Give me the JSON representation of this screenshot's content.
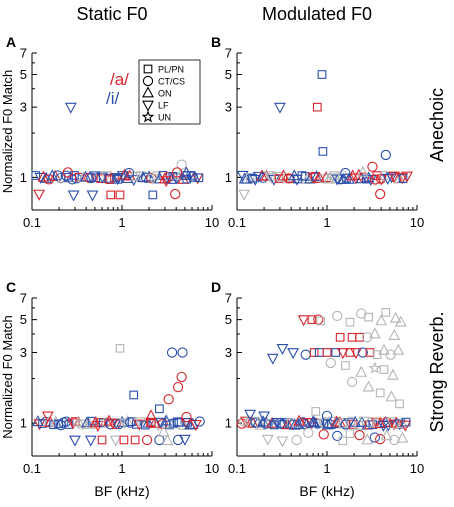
{
  "column_titles": [
    "Static F0",
    "Modulated F0"
  ],
  "row_titles": [
    "Anechoic",
    "Strong Reverb."
  ],
  "legend": {
    "vowels": [
      {
        "label": "/a/",
        "color": "#d9242b"
      },
      {
        "label": "/i/",
        "color": "#2a4fad"
      }
    ],
    "classes": [
      {
        "label": "PL/PN",
        "marker": "square"
      },
      {
        "label": "CT/CS",
        "marker": "circle"
      },
      {
        "label": "ON",
        "marker": "triangle-up"
      },
      {
        "label": "LF",
        "marker": "triangle-down"
      },
      {
        "label": "UN",
        "marker": "star"
      }
    ]
  },
  "colors": {
    "a": "#d9242b",
    "i": "#2a4fad",
    "unmatched": "#b5b5b5",
    "axis": "#000000"
  },
  "chart_data": [
    {
      "type": "scatter",
      "panel": "A",
      "xlabel": "",
      "ylabel": "Normalized F0 Match",
      "x_scale": "log",
      "xlim": [
        0.1,
        10
      ],
      "ylim": [
        0.6,
        7
      ],
      "xticks": [
        0.1,
        1,
        10
      ],
      "yticks": [
        1,
        3,
        5,
        7
      ],
      "points": [
        {
          "x": 0.27,
          "y": 3.0,
          "m": "triangle-down",
          "c": "i"
        },
        {
          "x": 0.12,
          "y": 0.77,
          "m": "triangle-down",
          "c": "a"
        },
        {
          "x": 0.29,
          "y": 0.76,
          "m": "triangle-down",
          "c": "i"
        },
        {
          "x": 0.47,
          "y": 0.76,
          "m": "triangle-down",
          "c": "i"
        },
        {
          "x": 0.75,
          "y": 0.76,
          "m": "square",
          "c": "a"
        },
        {
          "x": 0.95,
          "y": 0.76,
          "m": "square",
          "c": "a"
        },
        {
          "x": 2.2,
          "y": 0.76,
          "m": "square",
          "c": "i"
        },
        {
          "x": 3.9,
          "y": 0.77,
          "m": "circle",
          "c": "a"
        },
        {
          "x": 0.25,
          "y": 1.08,
          "m": "circle",
          "c": "a"
        },
        {
          "x": 1.2,
          "y": 1.07,
          "m": "circle",
          "c": "i"
        },
        {
          "x": 4.6,
          "y": 1.22,
          "m": "circle",
          "c": "u"
        },
        {
          "x": 4.1,
          "y": 1.08,
          "m": "circle",
          "c": "a"
        },
        {
          "x": 5.2,
          "y": 1.07,
          "m": "triangle-up",
          "c": "i"
        },
        {
          "x": 0.9,
          "y": 0.97,
          "m": "square",
          "c": "i"
        },
        {
          "x": 3.1,
          "y": 0.95,
          "m": "triangle-down",
          "c": "a"
        },
        {
          "x": 6.4,
          "y": 1.0,
          "m": "triangle-up",
          "c": "i"
        }
      ],
      "band": {
        "y": 1.0,
        "x_range": [
          0.11,
          7.5
        ],
        "density": 58
      }
    },
    {
      "type": "scatter",
      "panel": "B",
      "xlabel": "",
      "ylabel": "",
      "x_scale": "log",
      "xlim": [
        0.1,
        10
      ],
      "ylim": [
        0.6,
        7
      ],
      "xticks": [
        0.1,
        1,
        10
      ],
      "yticks": [
        1,
        3,
        5,
        7
      ],
      "points": [
        {
          "x": 0.88,
          "y": 5.0,
          "m": "square",
          "c": "i"
        },
        {
          "x": 0.78,
          "y": 3.0,
          "m": "square",
          "c": "a"
        },
        {
          "x": 0.3,
          "y": 3.0,
          "m": "triangle-down",
          "c": "i"
        },
        {
          "x": 0.9,
          "y": 1.5,
          "m": "square",
          "c": "i"
        },
        {
          "x": 0.12,
          "y": 0.77,
          "m": "triangle-down",
          "c": "u"
        },
        {
          "x": 3.9,
          "y": 0.77,
          "m": "circle",
          "c": "a"
        },
        {
          "x": 4.5,
          "y": 1.42,
          "m": "circle",
          "c": "i"
        },
        {
          "x": 3.2,
          "y": 1.18,
          "m": "circle",
          "c": "a"
        },
        {
          "x": 2.5,
          "y": 1.08,
          "m": "triangle-up",
          "c": "u"
        },
        {
          "x": 1.6,
          "y": 1.07,
          "m": "circle",
          "c": "i"
        }
      ],
      "band": {
        "y": 1.0,
        "x_range": [
          0.11,
          8.0
        ],
        "density": 62
      }
    },
    {
      "type": "scatter",
      "panel": "C",
      "xlabel": "BF (kHz)",
      "ylabel": "Normalized F0 Match",
      "x_scale": "log",
      "xlim": [
        0.1,
        10
      ],
      "ylim": [
        0.6,
        7
      ],
      "xticks": [
        0.1,
        1,
        10
      ],
      "yticks": [
        1,
        3,
        5,
        7
      ],
      "points": [
        {
          "x": 0.95,
          "y": 3.2,
          "m": "square",
          "c": "u"
        },
        {
          "x": 3.6,
          "y": 3.0,
          "m": "circle",
          "c": "i"
        },
        {
          "x": 4.7,
          "y": 3.0,
          "m": "circle",
          "c": "i"
        },
        {
          "x": 4.2,
          "y": 1.75,
          "m": "circle",
          "c": "a"
        },
        {
          "x": 4.6,
          "y": 2.05,
          "m": "circle",
          "c": "a"
        },
        {
          "x": 1.35,
          "y": 1.55,
          "m": "square",
          "c": "i"
        },
        {
          "x": 3.3,
          "y": 1.45,
          "m": "circle",
          "c": "a"
        },
        {
          "x": 2.6,
          "y": 1.25,
          "m": "square",
          "c": "i"
        },
        {
          "x": 0.15,
          "y": 1.12,
          "m": "triangle-down",
          "c": "a"
        },
        {
          "x": 0.3,
          "y": 0.77,
          "m": "triangle-down",
          "c": "i"
        },
        {
          "x": 0.45,
          "y": 0.77,
          "m": "triangle-down",
          "c": "i"
        },
        {
          "x": 0.6,
          "y": 0.77,
          "m": "square",
          "c": "a"
        },
        {
          "x": 0.85,
          "y": 0.77,
          "m": "triangle-down",
          "c": "u"
        },
        {
          "x": 1.05,
          "y": 0.77,
          "m": "square",
          "c": "a"
        },
        {
          "x": 1.4,
          "y": 0.77,
          "m": "square",
          "c": "a"
        },
        {
          "x": 1.9,
          "y": 0.77,
          "m": "circle",
          "c": "a"
        },
        {
          "x": 2.6,
          "y": 0.77,
          "m": "circle",
          "c": "i"
        },
        {
          "x": 3.2,
          "y": 0.76,
          "m": "triangle-up",
          "c": "u"
        },
        {
          "x": 4.2,
          "y": 0.77,
          "m": "circle",
          "c": "i"
        },
        {
          "x": 5.0,
          "y": 0.78,
          "m": "triangle-down",
          "c": "i"
        },
        {
          "x": 2.9,
          "y": 0.87,
          "m": "triangle-up",
          "c": "u"
        },
        {
          "x": 2.1,
          "y": 1.12,
          "m": "triangle-up",
          "c": "a"
        },
        {
          "x": 5.2,
          "y": 1.1,
          "m": "circle",
          "c": "a"
        }
      ],
      "band": {
        "y": 1.0,
        "x_range": [
          0.11,
          7.5
        ],
        "density": 60
      }
    },
    {
      "type": "scatter",
      "panel": "D",
      "xlabel": "BF (kHz)",
      "ylabel": "",
      "x_scale": "log",
      "xlim": [
        0.1,
        10
      ],
      "ylim": [
        0.6,
        7
      ],
      "xticks": [
        0.1,
        1,
        10
      ],
      "yticks": [
        1,
        3,
        5,
        7
      ],
      "points": [
        {
          "x": 0.55,
          "y": 5.0,
          "m": "triangle-down",
          "c": "a"
        },
        {
          "x": 0.68,
          "y": 5.0,
          "m": "square",
          "c": "a"
        },
        {
          "x": 0.8,
          "y": 5.0,
          "m": "circle",
          "c": "a"
        },
        {
          "x": 0.85,
          "y": 4.9,
          "m": "square",
          "c": "u"
        },
        {
          "x": 1.3,
          "y": 5.3,
          "m": "circle",
          "c": "u"
        },
        {
          "x": 1.8,
          "y": 4.8,
          "m": "square",
          "c": "u"
        },
        {
          "x": 2.4,
          "y": 5.5,
          "m": "circle",
          "c": "u"
        },
        {
          "x": 2.9,
          "y": 5.2,
          "m": "square",
          "c": "u"
        },
        {
          "x": 4.0,
          "y": 4.9,
          "m": "triangle-up",
          "c": "u"
        },
        {
          "x": 4.5,
          "y": 5.6,
          "m": "square",
          "c": "u"
        },
        {
          "x": 5.8,
          "y": 5.1,
          "m": "triangle-up",
          "c": "u"
        },
        {
          "x": 6.6,
          "y": 4.8,
          "m": "triangle-up",
          "c": "u"
        },
        {
          "x": 1.4,
          "y": 3.8,
          "m": "square",
          "c": "a"
        },
        {
          "x": 1.9,
          "y": 3.8,
          "m": "square",
          "c": "a"
        },
        {
          "x": 2.3,
          "y": 3.8,
          "m": "square",
          "c": "a"
        },
        {
          "x": 2.8,
          "y": 3.8,
          "m": "circle",
          "c": "u"
        },
        {
          "x": 3.4,
          "y": 4.0,
          "m": "triangle-up",
          "c": "u"
        },
        {
          "x": 5.6,
          "y": 3.9,
          "m": "triangle-up",
          "c": "u"
        },
        {
          "x": 0.32,
          "y": 3.2,
          "m": "triangle-down",
          "c": "i"
        },
        {
          "x": 0.42,
          "y": 3.0,
          "m": "triangle-down",
          "c": "i"
        },
        {
          "x": 0.25,
          "y": 2.75,
          "m": "triangle-down",
          "c": "i"
        },
        {
          "x": 0.58,
          "y": 2.9,
          "m": "circle",
          "c": "i"
        },
        {
          "x": 0.72,
          "y": 3.0,
          "m": "square",
          "c": "a"
        },
        {
          "x": 0.82,
          "y": 3.0,
          "m": "square",
          "c": "i"
        },
        {
          "x": 1.0,
          "y": 3.0,
          "m": "square",
          "c": "a"
        },
        {
          "x": 1.25,
          "y": 3.0,
          "m": "square",
          "c": "i"
        },
        {
          "x": 1.5,
          "y": 3.0,
          "m": "triangle-down",
          "c": "a"
        },
        {
          "x": 1.8,
          "y": 3.0,
          "m": "square",
          "c": "a"
        },
        {
          "x": 2.1,
          "y": 3.0,
          "m": "triangle-down",
          "c": "a"
        },
        {
          "x": 2.5,
          "y": 3.0,
          "m": "circle",
          "c": "i"
        },
        {
          "x": 3.0,
          "y": 3.0,
          "m": "square",
          "c": "a"
        },
        {
          "x": 3.6,
          "y": 2.9,
          "m": "square",
          "c": "u"
        },
        {
          "x": 4.3,
          "y": 3.1,
          "m": "triangle-up",
          "c": "u"
        },
        {
          "x": 5.1,
          "y": 2.9,
          "m": "circle",
          "c": "u"
        },
        {
          "x": 6.2,
          "y": 3.1,
          "m": "triangle-up",
          "c": "u"
        },
        {
          "x": 1.1,
          "y": 2.55,
          "m": "circle",
          "c": "u"
        },
        {
          "x": 1.6,
          "y": 2.45,
          "m": "square",
          "c": "u"
        },
        {
          "x": 2.4,
          "y": 2.2,
          "m": "triangle-up",
          "c": "u"
        },
        {
          "x": 3.4,
          "y": 2.35,
          "m": "star",
          "c": "u"
        },
        {
          "x": 4.3,
          "y": 2.3,
          "m": "square",
          "c": "u"
        },
        {
          "x": 5.4,
          "y": 2.1,
          "m": "triangle-up",
          "c": "u"
        },
        {
          "x": 1.9,
          "y": 1.9,
          "m": "circle",
          "c": "u"
        },
        {
          "x": 2.9,
          "y": 1.75,
          "m": "triangle-up",
          "c": "u"
        },
        {
          "x": 3.9,
          "y": 1.6,
          "m": "square",
          "c": "u"
        },
        {
          "x": 5.2,
          "y": 1.5,
          "m": "triangle-up",
          "c": "u"
        },
        {
          "x": 6.4,
          "y": 1.35,
          "m": "square",
          "c": "u"
        },
        {
          "x": 0.14,
          "y": 1.15,
          "m": "triangle-down",
          "c": "i"
        },
        {
          "x": 0.2,
          "y": 1.12,
          "m": "triangle-down",
          "c": "i"
        },
        {
          "x": 1.0,
          "y": 1.12,
          "m": "circle",
          "c": "i"
        },
        {
          "x": 0.75,
          "y": 1.2,
          "m": "square",
          "c": "u"
        },
        {
          "x": 0.62,
          "y": 0.86,
          "m": "circle",
          "c": "u"
        },
        {
          "x": 0.92,
          "y": 0.84,
          "m": "circle",
          "c": "a"
        },
        {
          "x": 1.3,
          "y": 0.82,
          "m": "circle",
          "c": "i"
        },
        {
          "x": 1.8,
          "y": 0.85,
          "m": "square",
          "c": "u"
        },
        {
          "x": 2.3,
          "y": 0.83,
          "m": "circle",
          "c": "a"
        },
        {
          "x": 3.4,
          "y": 0.8,
          "m": "circle",
          "c": "i"
        },
        {
          "x": 3.9,
          "y": 0.78,
          "m": "circle",
          "c": "a"
        },
        {
          "x": 4.6,
          "y": 0.82,
          "m": "triangle-up",
          "c": "u"
        },
        {
          "x": 0.22,
          "y": 0.78,
          "m": "triangle-down",
          "c": "u"
        },
        {
          "x": 0.32,
          "y": 0.76,
          "m": "triangle-down",
          "c": "u"
        },
        {
          "x": 0.46,
          "y": 0.77,
          "m": "circle",
          "c": "u"
        },
        {
          "x": 1.5,
          "y": 0.76,
          "m": "square",
          "c": "u"
        },
        {
          "x": 2.8,
          "y": 0.77,
          "m": "triangle-up",
          "c": "u"
        },
        {
          "x": 5.6,
          "y": 0.77,
          "m": "circle",
          "c": "u"
        },
        {
          "x": 6.9,
          "y": 0.79,
          "m": "triangle-up",
          "c": "u"
        }
      ],
      "band": {
        "y": 1.0,
        "x_range": [
          0.11,
          8.0
        ],
        "density": 75
      }
    }
  ]
}
